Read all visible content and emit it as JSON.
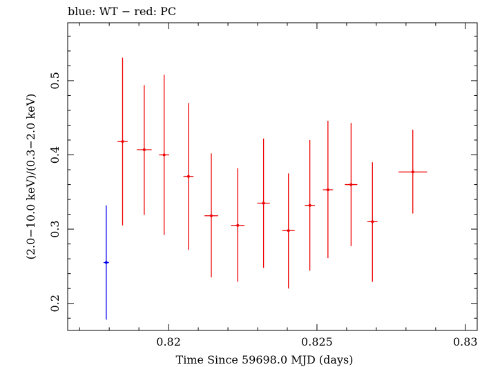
{
  "chart_data": {
    "type": "scatter",
    "title": "blue: WT − red: PC",
    "xlabel": "Time Since 59698.0 MJD (days)",
    "ylabel": "(2.0−10.0 keV)/(0.3−2.0 keV)",
    "xlim": [
      0.8166,
      0.8304
    ],
    "ylim": [
      0.1635,
      0.578
    ],
    "x_ticks": [
      {
        "value": 0.82,
        "label": "0.82"
      },
      {
        "value": 0.825,
        "label": "0.825"
      },
      {
        "value": 0.83,
        "label": "0.83"
      }
    ],
    "y_ticks": [
      {
        "value": 0.2,
        "label": "0.2"
      },
      {
        "value": 0.3,
        "label": "0.3"
      },
      {
        "value": 0.4,
        "label": "0.4"
      },
      {
        "value": 0.5,
        "label": "0.5"
      }
    ],
    "grid": false,
    "series": [
      {
        "name": "WT",
        "color": "#0000ee",
        "points": [
          {
            "x": 0.8179,
            "xerr": 9e-05,
            "y": 0.255,
            "ylo": 0.178,
            "yhi": 0.332
          }
        ]
      },
      {
        "name": "PC",
        "color": "#ee0000",
        "points": [
          {
            "x": 0.81845,
            "xerr": 0.00017,
            "y": 0.418,
            "ylo": 0.305,
            "yhi": 0.531
          },
          {
            "x": 0.81918,
            "xerr": 0.00025,
            "y": 0.407,
            "ylo": 0.319,
            "yhi": 0.494
          },
          {
            "x": 0.81985,
            "xerr": 0.00017,
            "y": 0.4,
            "ylo": 0.292,
            "yhi": 0.508
          },
          {
            "x": 0.82067,
            "xerr": 0.00017,
            "y": 0.371,
            "ylo": 0.272,
            "yhi": 0.47
          },
          {
            "x": 0.82144,
            "xerr": 0.00023,
            "y": 0.318,
            "ylo": 0.235,
            "yhi": 0.402
          },
          {
            "x": 0.82233,
            "xerr": 0.00023,
            "y": 0.305,
            "ylo": 0.229,
            "yhi": 0.382
          },
          {
            "x": 0.8232,
            "xerr": 0.00021,
            "y": 0.335,
            "ylo": 0.248,
            "yhi": 0.422
          },
          {
            "x": 0.82404,
            "xerr": 0.00021,
            "y": 0.298,
            "ylo": 0.22,
            "yhi": 0.375
          },
          {
            "x": 0.82476,
            "xerr": 0.00017,
            "y": 0.332,
            "ylo": 0.244,
            "yhi": 0.42
          },
          {
            "x": 0.82537,
            "xerr": 0.00017,
            "y": 0.353,
            "ylo": 0.261,
            "yhi": 0.446
          },
          {
            "x": 0.82615,
            "xerr": 0.00021,
            "y": 0.36,
            "ylo": 0.277,
            "yhi": 0.443
          },
          {
            "x": 0.82687,
            "xerr": 0.00017,
            "y": 0.31,
            "ylo": 0.229,
            "yhi": 0.39
          },
          {
            "x": 0.82823,
            "xerr": 0.00048,
            "y": 0.377,
            "ylo": 0.321,
            "yhi": 0.434
          }
        ]
      }
    ]
  }
}
